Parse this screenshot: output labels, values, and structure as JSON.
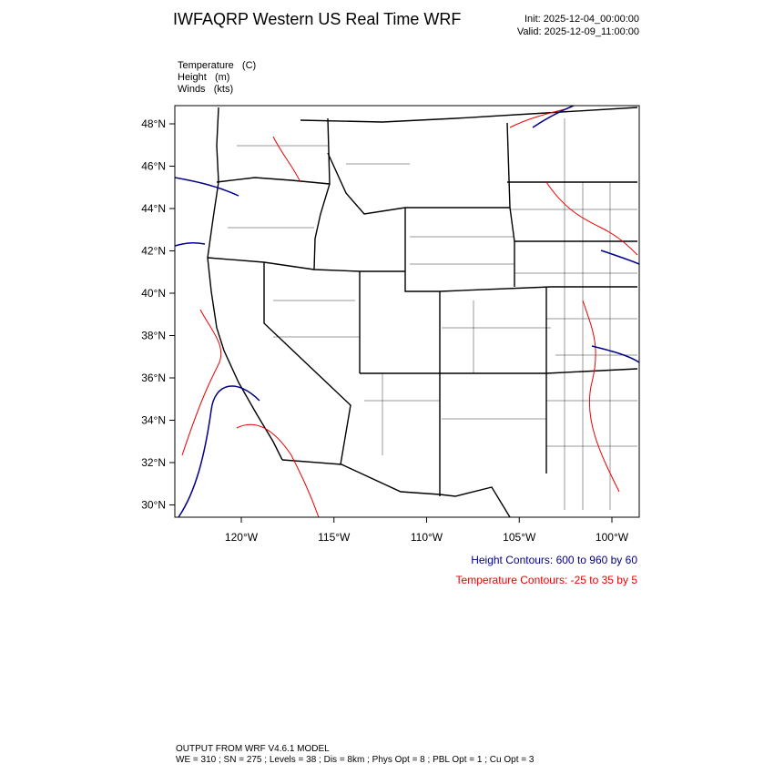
{
  "header": {
    "title": "IWFAQRP Western US Real Time WRF",
    "init": "Init: 2025-12-04_00:00:00",
    "valid": "Valid: 2025-12-09_11:00:00"
  },
  "legend": {
    "lines": [
      "Temperature   (C)",
      "Height   (m)",
      "Winds   (kts)"
    ]
  },
  "map": {
    "lat_labels": [
      "48°N",
      "46°N",
      "44°N",
      "42°N",
      "40°N",
      "38°N",
      "36°N",
      "34°N",
      "32°N",
      "30°N"
    ],
    "lon_labels": [
      "120°W",
      "115°W",
      "110°W",
      "105°W",
      "100°W"
    ]
  },
  "contour_info": {
    "height": "Height Contours: 600 to 960 by 60",
    "temperature": "Temperature Contours: -25 to 35 by 5"
  },
  "footer": {
    "model": "OUTPUT FROM WRF V4.6.1 MODEL",
    "settings": "WE = 310 ; SN = 275 ; Levels = 38 ; Dis = 8km ; Phys Opt = 8 ; PBL Opt = 1 ; Cu Opt = 3"
  }
}
